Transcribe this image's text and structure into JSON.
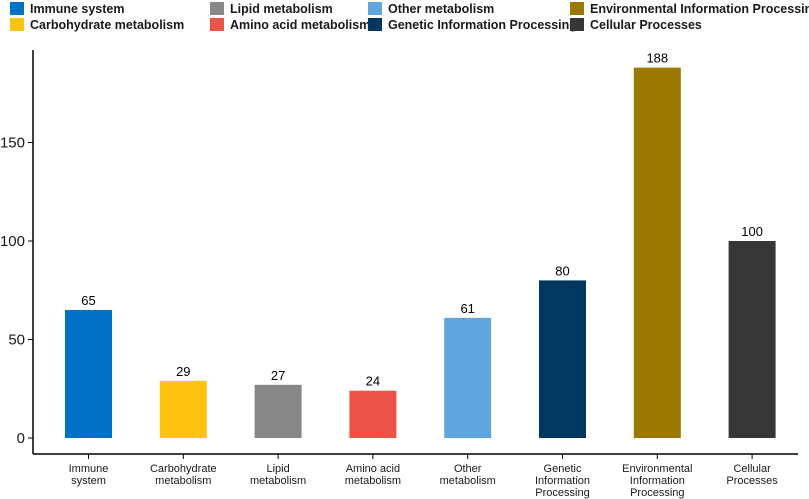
{
  "chart_data": {
    "type": "bar",
    "title": "",
    "xlabel": "",
    "ylabel": "",
    "ylim": [
      0,
      196
    ],
    "yticks": [
      0,
      50,
      100,
      150
    ],
    "grid": false,
    "legend_position": "top",
    "categories": [
      "Immune system",
      "Carbohydrate metabolism",
      "Lipid metabolism",
      "Amino acid metabolism",
      "Other metabolism",
      "Genetic Information Processing",
      "Environmental Information Processing",
      "Cellular Processes"
    ],
    "category_labels": [
      [
        "Immune",
        "system"
      ],
      [
        "Carbohydrate",
        "metabolism"
      ],
      [
        "Lipid",
        "metabolism"
      ],
      [
        "Amino acid",
        "metabolism"
      ],
      [
        "Other",
        "metabolism"
      ],
      [
        "Genetic",
        "Information",
        "Processing"
      ],
      [
        "Environmental",
        "Information",
        "Processing"
      ],
      [
        "Cellular",
        "Processes"
      ]
    ],
    "values": [
      65,
      29,
      27,
      24,
      61,
      80,
      188,
      100
    ],
    "colors": [
      "#0072C6",
      "#FFC20E",
      "#878787",
      "#EC5349",
      "#5FA6DE",
      "#00375F",
      "#9B7800",
      "#363636"
    ],
    "legend": [
      {
        "label": "Immune system",
        "color": "#0072C6"
      },
      {
        "label": "Lipid metabolism",
        "color": "#878787"
      },
      {
        "label": "Other metabolism",
        "color": "#5FA6DE"
      },
      {
        "label": "Environmental Information Processing",
        "color": "#9B7800"
      },
      {
        "label": "Carbohydrate metabolism",
        "color": "#FFC20E"
      },
      {
        "label": "Amino acid metabolism",
        "color": "#EC5349"
      },
      {
        "label": "Genetic Information Processing",
        "color": "#00375F"
      },
      {
        "label": "Cellular Processes",
        "color": "#363636"
      }
    ]
  }
}
